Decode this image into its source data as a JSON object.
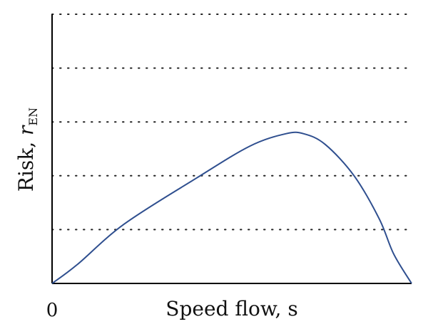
{
  "chart_data": {
    "type": "line",
    "title": "",
    "xlabel": "Speed flow, s",
    "ylabel_main": "Risk, ",
    "ylabel_var": "r",
    "ylabel_sub": "EN",
    "x_tick_labels": [
      "0"
    ],
    "grid": "dotted horizontal lines",
    "xlim": [
      0,
      1
    ],
    "ylim": [
      0,
      5
    ],
    "series": [
      {
        "color": "#2f4f8f",
        "x": [
          0,
          0.07,
          0.2,
          0.4,
          0.55,
          0.65,
          0.7,
          0.76,
          0.84,
          0.91,
          0.95,
          1.0
        ],
        "y": [
          0,
          0.35,
          1.1,
          1.95,
          2.55,
          2.78,
          2.78,
          2.58,
          2.0,
          1.2,
          0.55,
          0
        ]
      }
    ]
  }
}
